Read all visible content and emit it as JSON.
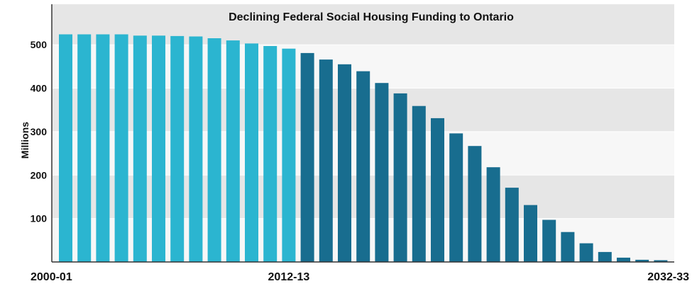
{
  "chart_data": {
    "type": "bar",
    "title": "Declining Federal Social Housing Funding to Ontario",
    "xlabel": "",
    "ylabel": "Millions",
    "ylim": [
      0,
      550
    ],
    "yticks": [
      100,
      200,
      300,
      400,
      500
    ],
    "grid": "horizontal bands",
    "x_tick_labels": [
      "2000-01",
      "2012-13",
      "2032-33"
    ],
    "categories": [
      "2000-01",
      "2001-02",
      "2002-03",
      "2003-04",
      "2004-05",
      "2005-06",
      "2006-07",
      "2007-08",
      "2008-09",
      "2009-10",
      "2010-11",
      "2011-12",
      "2012-13",
      "2013-14",
      "2014-15",
      "2015-16",
      "2016-17",
      "2017-18",
      "2018-19",
      "2019-20",
      "2020-21",
      "2021-22",
      "2022-23",
      "2023-24",
      "2024-25",
      "2025-26",
      "2026-27",
      "2027-28",
      "2028-29",
      "2029-30",
      "2030-31",
      "2031-32",
      "2032-33"
    ],
    "values": [
      524,
      524,
      524,
      524,
      521,
      521,
      520,
      519,
      515,
      510,
      503,
      497,
      491,
      481,
      466,
      455,
      439,
      412,
      388,
      359,
      331,
      296,
      267,
      218,
      171,
      131,
      97,
      69,
      43,
      23,
      10,
      5,
      4
    ],
    "series_split_index": 13,
    "colors": {
      "historical": "#2bb5d0",
      "projected": "#186d8f",
      "band_dark": "#e6e6e6",
      "band_light": "#f7f7f7",
      "axis": "#333333"
    }
  }
}
